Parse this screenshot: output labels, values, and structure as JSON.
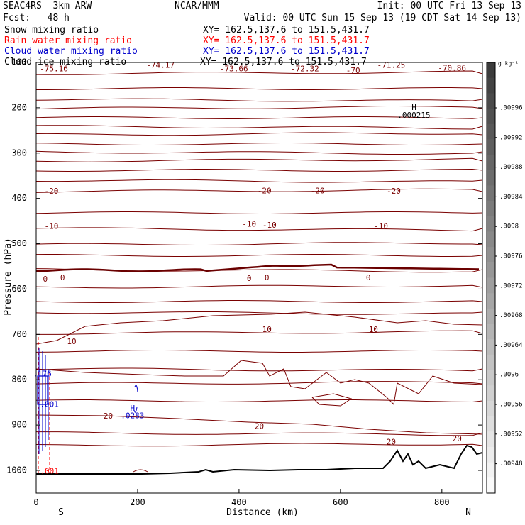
{
  "header": {
    "left1": "SEAC4RS  3km ARW",
    "center1": "NCAR/MMM",
    "right1": "Init: 00 UTC Fri 13 Sep 13",
    "left2": "Fcst:   48 h",
    "right2": "Valid: 00 UTC Sun 15 Sep 13 (19 CDT Sat 14 Sep 13)"
  },
  "fields": [
    {
      "name": "Snow mixing ratio",
      "xy": "XY= 162.5,137.6 to 151.5,431.7",
      "color": "#000000"
    },
    {
      "name": "Rain water mixing ratio",
      "xy": "XY= 162.5,137.6 to 151.5,431.7",
      "color": "#ff0000"
    },
    {
      "name": "Cloud water mixing ratio",
      "xy": "XY= 162.5,137.6 to 151.5,431.7",
      "color": "#0000cc"
    },
    {
      "name": "Cloud ice mixing ratio",
      "xy": "XY= 162.5,137.6 to 151.5,431.7",
      "color": "#000000"
    }
  ],
  "colors": {
    "temperature": "#7a0000",
    "freezing": "#6a0000",
    "cloud_water": "#0000cc",
    "rain": "#ff0000",
    "terrain": "#000000"
  },
  "chart_data": {
    "type": "line",
    "xlabel": "Distance (km)",
    "ylabel": "Pressure (hPa)",
    "xlim": [
      0,
      880
    ],
    "ylim": [
      1000,
      100
    ],
    "xticks": [
      0,
      200,
      400,
      600,
      800
    ],
    "yticks": [
      100,
      200,
      300,
      400,
      500,
      600,
      700,
      800,
      900,
      1000
    ],
    "end_labels": {
      "left": "S",
      "right": "N"
    },
    "colorbar": {
      "unit": "g kg⁻¹",
      "labels": [
        ".00996",
        ".00992",
        ".00988",
        ".00984",
        ".0098",
        ".00976",
        ".00972",
        ".00968",
        ".00964",
        ".0096",
        ".00956",
        ".00952",
        ".00948"
      ]
    },
    "temperature_contours": [
      {
        "label": "-75.16",
        "x": 35,
        "p": 115
      },
      {
        "label": "-74.17",
        "x": 245,
        "p": 107
      },
      {
        "label": "-73.66",
        "x": 390,
        "p": 115
      },
      {
        "label": "-72.32",
        "x": 530,
        "p": 115
      },
      {
        "label": "-70",
        "x": 625,
        "p": 119
      },
      {
        "label": "-71.25",
        "x": 700,
        "p": 107
      },
      {
        "label": "-70.86",
        "x": 820,
        "p": 113
      },
      {
        "label": "-20",
        "x": 30,
        "p": 385
      },
      {
        "label": "-20",
        "x": 450,
        "p": 384
      },
      {
        "label": "-20",
        "x": 555,
        "p": 384
      },
      {
        "label": "-20",
        "x": 705,
        "p": 385
      },
      {
        "label": "-10",
        "x": 30,
        "p": 462
      },
      {
        "label": "-10",
        "x": 420,
        "p": 458
      },
      {
        "label": "-10",
        "x": 460,
        "p": 460
      },
      {
        "label": "-10",
        "x": 680,
        "p": 462
      },
      {
        "label": "0",
        "x": 18,
        "p": 579
      },
      {
        "label": "0",
        "x": 52,
        "p": 576
      },
      {
        "label": "0",
        "x": 420,
        "p": 577
      },
      {
        "label": "0",
        "x": 455,
        "p": 576
      },
      {
        "label": "0",
        "x": 655,
        "p": 576
      },
      {
        "label": "10",
        "x": 70,
        "p": 717
      },
      {
        "label": "10",
        "x": 455,
        "p": 690
      },
      {
        "label": "10",
        "x": 665,
        "p": 690
      },
      {
        "label": "20",
        "x": 142,
        "p": 881
      },
      {
        "label": "20",
        "x": 440,
        "p": 904
      },
      {
        "label": "20",
        "x": 700,
        "p": 938
      },
      {
        "label": "20",
        "x": 830,
        "p": 931
      }
    ],
    "annotations": [
      {
        "label": "H",
        "x": 745,
        "p": 200
      },
      {
        "label": ".000215",
        "x": 745,
        "p": 217
      },
      {
        "label": "H",
        "x": 190,
        "p": 864
      },
      {
        "label": ".0283",
        "x": 190,
        "p": 880
      },
      {
        "label": ".176",
        "x": 12,
        "p": 788
      },
      {
        "label": ".001",
        "x": 26,
        "p": 855
      },
      {
        "label": ".001",
        "x": 26,
        "p": 1002
      }
    ]
  }
}
